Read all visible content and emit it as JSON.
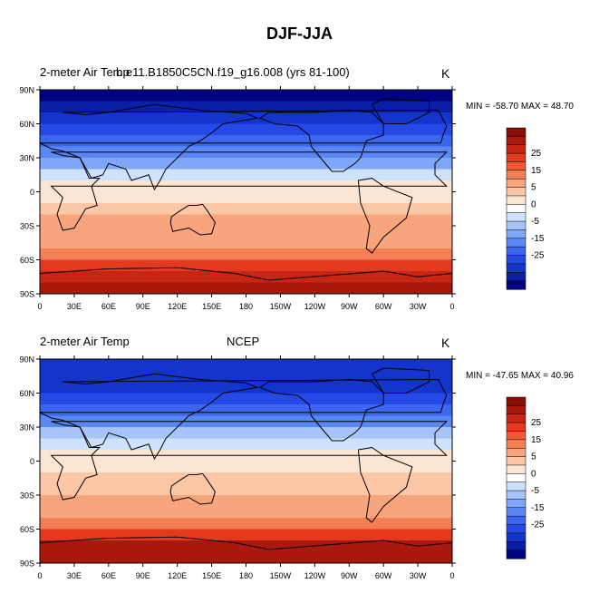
{
  "main_title": "DJF-JJA",
  "colors": {
    "levels": [
      "#00027f",
      "#0a1ea8",
      "#1435cc",
      "#2449e6",
      "#3a66f0",
      "#5987f4",
      "#7fa6f7",
      "#a6c4fa",
      "#cfe2fd",
      "#ffffff",
      "#fde5d4",
      "#fbc7a7",
      "#f8a47c",
      "#f47f55",
      "#ef5a36",
      "#e2391f",
      "#c92513",
      "#a8180d",
      "#870f08"
    ]
  },
  "chart_data": [
    {
      "type": "heatmap",
      "left_title": "2-meter Air Temp",
      "center_title": "b.e11.B1850C5CN.f19_g16.008 (yrs 81-100)",
      "units": "K",
      "min_max": "MIN = -58.70 MAX =  48.70",
      "y_ticks": [
        "90N",
        "60N",
        "30N",
        "0",
        "30S",
        "60S",
        "90S"
      ],
      "x_ticks": [
        "0",
        "30E",
        "60E",
        "90E",
        "120E",
        "150E",
        "180",
        "150W",
        "120W",
        "90W",
        "60W",
        "30W",
        "0"
      ],
      "colorbar_labels": [
        "25",
        "15",
        "5",
        "0",
        "-5",
        "-15",
        "-25"
      ],
      "zonal_profile": [
        {
          "lat": 85,
          "value": -30
        },
        {
          "lat": 75,
          "value": -28
        },
        {
          "lat": 65,
          "value": -24
        },
        {
          "lat": 55,
          "value": -18
        },
        {
          "lat": 45,
          "value": -13
        },
        {
          "lat": 35,
          "value": -8
        },
        {
          "lat": 25,
          "value": -4
        },
        {
          "lat": 15,
          "value": -1
        },
        {
          "lat": 5,
          "value": 1
        },
        {
          "lat": -5,
          "value": 2
        },
        {
          "lat": -15,
          "value": 3
        },
        {
          "lat": -25,
          "value": 5
        },
        {
          "lat": -35,
          "value": 6
        },
        {
          "lat": -45,
          "value": 7
        },
        {
          "lat": -55,
          "value": 9
        },
        {
          "lat": -65,
          "value": 16
        },
        {
          "lat": -75,
          "value": 23
        },
        {
          "lat": -85,
          "value": 27
        }
      ]
    },
    {
      "type": "heatmap",
      "left_title": "2-meter Air Temp",
      "center_title": "NCEP",
      "units": "K",
      "min_max": "MIN = -47.65 MAX =  40.96",
      "y_ticks": [
        "90N",
        "60N",
        "30N",
        "0",
        "30S",
        "60S",
        "90S"
      ],
      "x_ticks": [
        "0",
        "30E",
        "60E",
        "90E",
        "120E",
        "150E",
        "180",
        "150W",
        "120W",
        "90W",
        "60W",
        "30W",
        "0"
      ],
      "colorbar_labels": [
        "25",
        "15",
        "5",
        "0",
        "-5",
        "-15",
        "-25"
      ],
      "zonal_profile": [
        {
          "lat": 85,
          "value": -22
        },
        {
          "lat": 75,
          "value": -24
        },
        {
          "lat": 65,
          "value": -22
        },
        {
          "lat": 55,
          "value": -17
        },
        {
          "lat": 45,
          "value": -12
        },
        {
          "lat": 35,
          "value": -7
        },
        {
          "lat": 25,
          "value": -3
        },
        {
          "lat": 15,
          "value": -1
        },
        {
          "lat": 5,
          "value": 1
        },
        {
          "lat": -5,
          "value": 2
        },
        {
          "lat": -15,
          "value": 3
        },
        {
          "lat": -25,
          "value": 4
        },
        {
          "lat": -35,
          "value": 5
        },
        {
          "lat": -45,
          "value": 6
        },
        {
          "lat": -55,
          "value": 8
        },
        {
          "lat": -65,
          "value": 18
        },
        {
          "lat": -75,
          "value": 26
        },
        {
          "lat": -85,
          "value": 30
        }
      ]
    }
  ]
}
